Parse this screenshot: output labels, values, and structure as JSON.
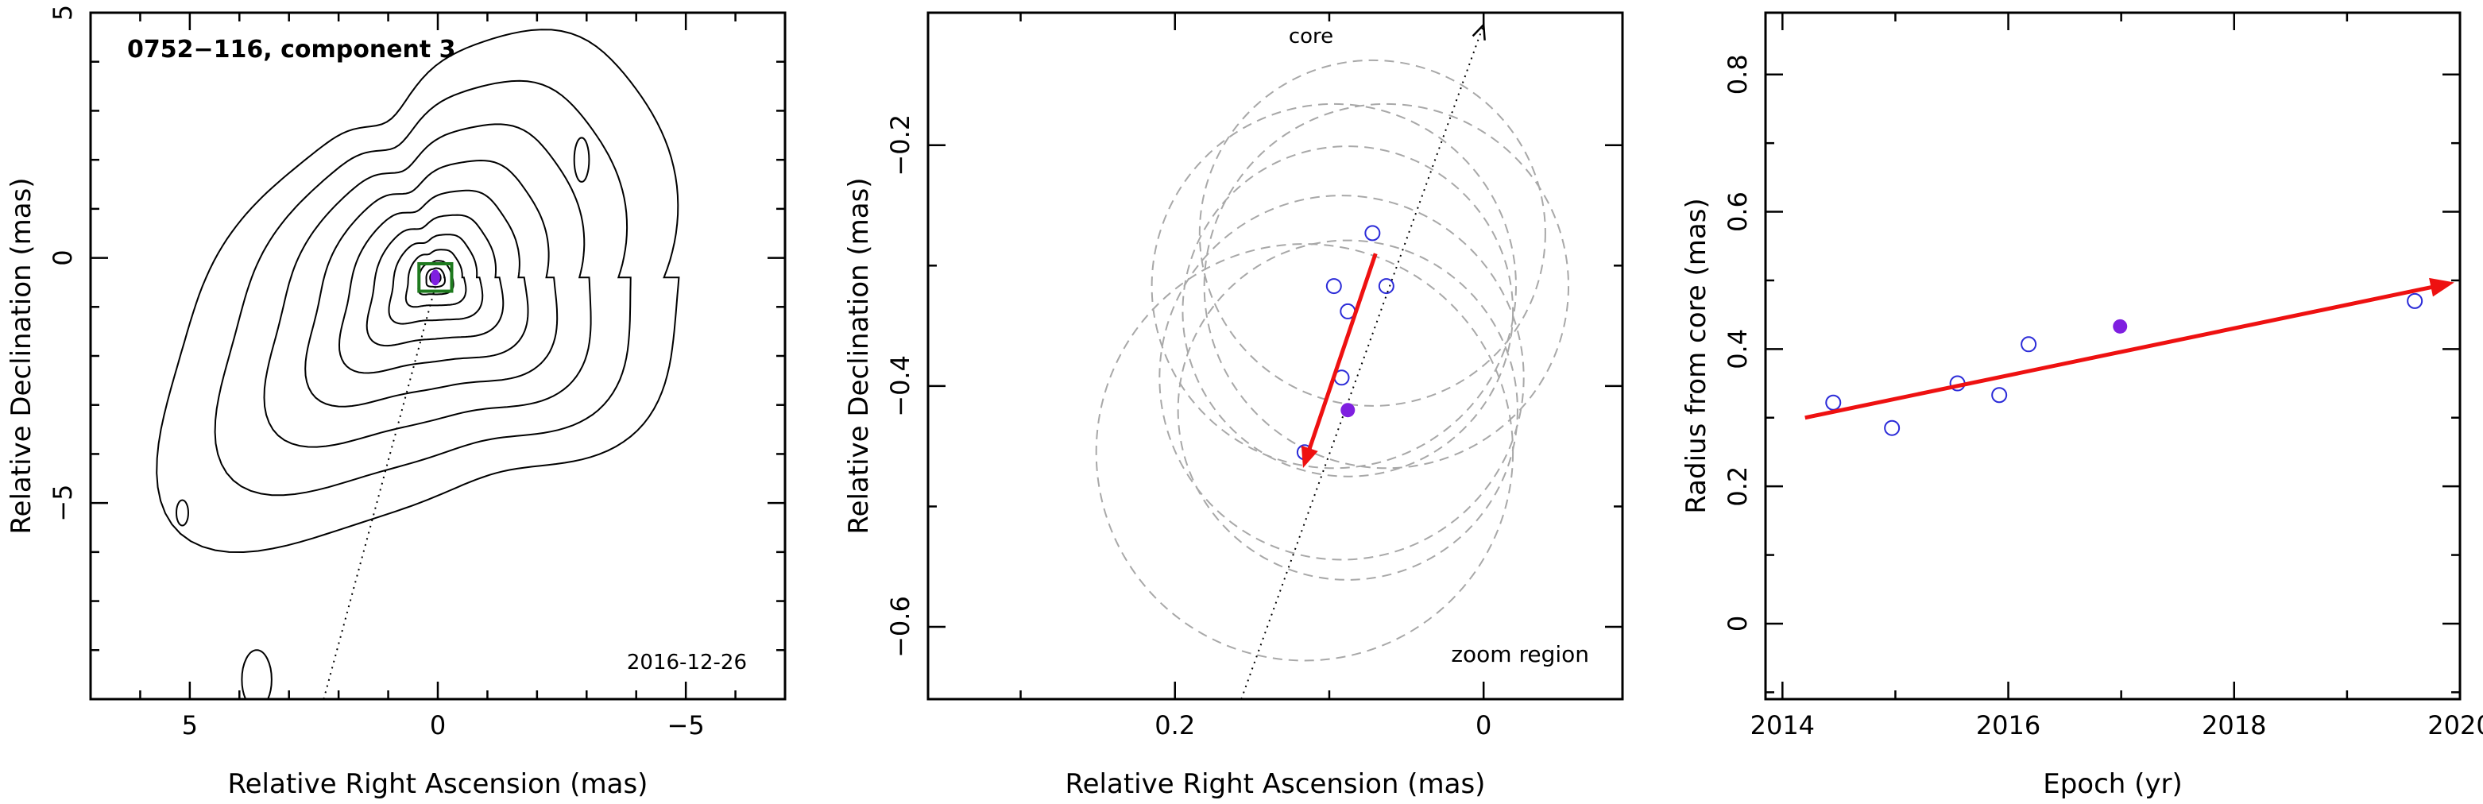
{
  "chart_data": [
    {
      "type": "contour",
      "panel_title": "0752−116, component 3",
      "xlabel": "Relative Right Ascension (mas)",
      "ylabel": "Relative Declination (mas)",
      "date_label": "2016-12-26",
      "xlim": [
        7,
        -7
      ],
      "ylim": [
        -9,
        5
      ],
      "xticks": [
        5,
        0,
        -5
      ],
      "xtick_labels": [
        "5",
        "0",
        "−5"
      ],
      "yticks": [
        5,
        0,
        -5
      ],
      "ytick_labels": [
        "5",
        "0",
        "−5"
      ],
      "component_marker": {
        "x": 0.05,
        "y": -0.4,
        "box_half_width": 0.33,
        "box_half_height": 0.28,
        "box_color": "#1e7a1e",
        "dot_color": "#7f1fe0"
      },
      "jet_axis": {
        "x1": 2.3,
        "y1": -9,
        "x2": 0,
        "y2": -0.4
      },
      "contour_colors": {
        "line": "#000000"
      }
    },
    {
      "type": "scatter",
      "xlabel": "Relative Right Ascension (mas)",
      "ylabel": "Relative Declination (mas)",
      "annotation_core": "core",
      "annotation_zoom": "zoom region",
      "xlim": [
        0.36,
        -0.09
      ],
      "ylim": [
        -0.66,
        -0.09
      ],
      "xticks": [
        0.2,
        0
      ],
      "xtick_labels": [
        "0.2",
        "0"
      ],
      "yticks": [
        -0.2,
        -0.4,
        -0.6
      ],
      "ytick_labels": [
        "−0.2",
        "−0.4",
        "−0.6"
      ],
      "open_points": [
        {
          "x": 0.072,
          "y": -0.273
        },
        {
          "x": 0.097,
          "y": -0.317
        },
        {
          "x": 0.063,
          "y": -0.317
        },
        {
          "x": 0.088,
          "y": -0.338
        },
        {
          "x": 0.092,
          "y": -0.393
        },
        {
          "x": 0.116,
          "y": -0.455
        }
      ],
      "filled_point": {
        "x": 0.088,
        "y": -0.42
      },
      "error_circles": [
        {
          "x": 0.072,
          "y": -0.273,
          "r": 0.112
        },
        {
          "x": 0.097,
          "y": -0.317,
          "r": 0.118
        },
        {
          "x": 0.063,
          "y": -0.317,
          "r": 0.118
        },
        {
          "x": 0.088,
          "y": -0.338,
          "r": 0.107
        },
        {
          "x": 0.092,
          "y": -0.393,
          "r": 0.118
        },
        {
          "x": 0.116,
          "y": -0.455,
          "r": 0.135
        },
        {
          "x": 0.088,
          "y": -0.42,
          "r": 0.11
        }
      ],
      "jet_axis": {
        "x1": 0.157,
        "y1": -0.66,
        "x2": 0.0,
        "y2": -0.1
      },
      "fit_arrow": {
        "x1": 0.07,
        "y1": -0.29,
        "x2": 0.117,
        "y2": -0.468
      },
      "colors": {
        "points": "#2b2bd8",
        "filled": "#7f1fe0",
        "arrow": "#ee1111",
        "circles": "#a8a8a8"
      }
    },
    {
      "type": "scatter",
      "xlabel": "Epoch (yr)",
      "ylabel": "Radius from core (mas)",
      "xlim": [
        2013.85,
        2020.0
      ],
      "ylim": [
        -0.11,
        0.89
      ],
      "xticks": [
        2014,
        2016,
        2018,
        2020
      ],
      "xtick_labels": [
        "2014",
        "2016",
        "2018",
        "2020"
      ],
      "yticks": [
        0,
        0.2,
        0.4,
        0.6,
        0.8
      ],
      "ytick_labels": [
        "0",
        "0.2",
        "0.4",
        "0.6",
        "0.8"
      ],
      "open_points": [
        {
          "x": 2014.45,
          "y": 0.322
        },
        {
          "x": 2014.97,
          "y": 0.285
        },
        {
          "x": 2015.55,
          "y": 0.35
        },
        {
          "x": 2015.92,
          "y": 0.333
        },
        {
          "x": 2016.18,
          "y": 0.407
        },
        {
          "x": 2019.6,
          "y": 0.47
        }
      ],
      "filled_point": {
        "x": 2016.99,
        "y": 0.433
      },
      "fit_arrow": {
        "x1": 2014.2,
        "y1": 0.3,
        "x2": 2019.95,
        "y2": 0.497
      },
      "colors": {
        "points": "#2b2bd8",
        "filled": "#7f1fe0",
        "arrow": "#ee1111"
      }
    }
  ]
}
